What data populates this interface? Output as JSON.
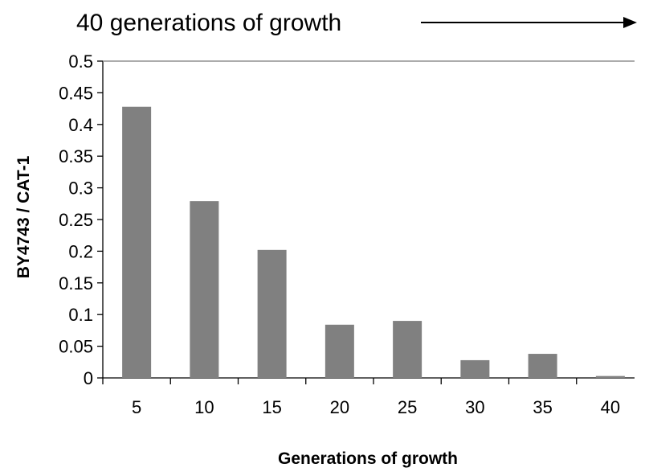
{
  "chart_data": {
    "type": "bar",
    "categories": [
      "5",
      "10",
      "15",
      "20",
      "25",
      "30",
      "35",
      "40"
    ],
    "values": [
      0.428,
      0.279,
      0.202,
      0.084,
      0.09,
      0.028,
      0.038,
      0.003
    ],
    "title": "",
    "annotation": "40 generations of growth",
    "xlabel": "Generations of growth",
    "ylabel": "BY4743 / CAT-1",
    "ylim": [
      0,
      0.5
    ],
    "yticks": [
      "0",
      "0.05",
      "0.1",
      "0.15",
      "0.2",
      "0.25",
      "0.3",
      "0.35",
      "0.4",
      "0.45",
      "0.5"
    ],
    "bar_color": "#808080",
    "grid": false,
    "legend": "none"
  }
}
